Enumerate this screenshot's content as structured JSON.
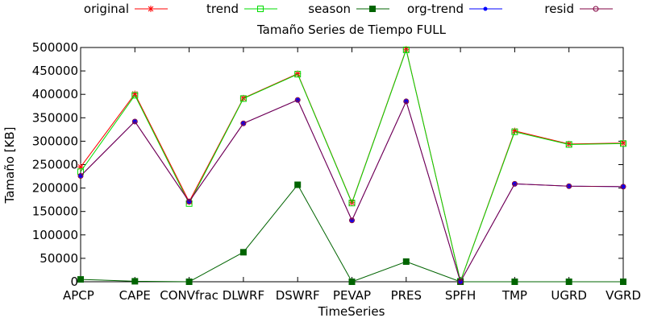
{
  "chart_data": {
    "type": "line",
    "title": "Tamaño Series de Tiempo FULL",
    "xlabel": "TimeSeries",
    "ylabel": "Tamaño [KB]",
    "ylim": [
      0,
      500000
    ],
    "yticks": [
      0,
      50000,
      100000,
      150000,
      200000,
      250000,
      300000,
      350000,
      400000,
      450000,
      500000
    ],
    "ytick_labels": [
      "0",
      "50000",
      "100000",
      "150000",
      "200000",
      "250000",
      "300000",
      "350000",
      "400000",
      "450000",
      "500000"
    ],
    "categories": [
      "APCP",
      "CAPE",
      "CONVfrac",
      "DLWRF",
      "DSWRF",
      "PEVAP",
      "PRES",
      "SPFH",
      "TMP",
      "UGRD",
      "VGRD"
    ],
    "legend_position": "top",
    "grid": false,
    "series": [
      {
        "name": "original",
        "color": "#ff0000",
        "marker": "star",
        "values": [
          245000,
          401000,
          171000,
          392000,
          444000,
          169000,
          496000,
          1000,
          322000,
          294000,
          296000
        ]
      },
      {
        "name": "trend",
        "color": "#00dd00",
        "marker": "open-square",
        "values": [
          235000,
          398000,
          167000,
          391000,
          443000,
          168000,
          495000,
          1000,
          320000,
          293000,
          295000
        ]
      },
      {
        "name": "season",
        "color": "#006400",
        "marker": "filled-square",
        "values": [
          5000,
          1000,
          0,
          63000,
          207000,
          0,
          43000,
          0,
          0,
          0,
          0
        ]
      },
      {
        "name": "org-trend",
        "color": "#0000ff",
        "marker": "dot",
        "values": [
          226000,
          342000,
          171000,
          338000,
          388000,
          131000,
          385000,
          0,
          209000,
          204000,
          203000
        ]
      },
      {
        "name": "resid",
        "color": "#800040",
        "marker": "open-circle",
        "values": [
          226000,
          342000,
          171000,
          338000,
          388000,
          131000,
          385000,
          0,
          209000,
          204000,
          203000
        ]
      }
    ]
  }
}
